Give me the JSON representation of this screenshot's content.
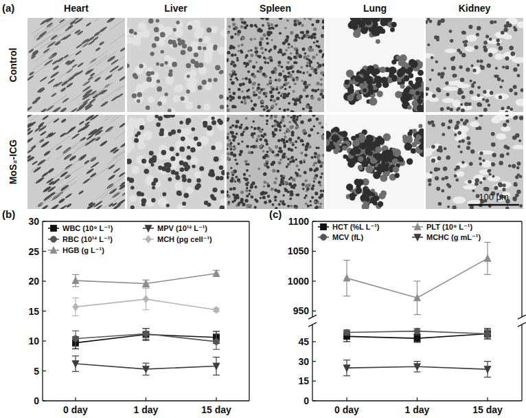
{
  "panel_labels": [
    "(a)",
    "(b)",
    "(c)"
  ],
  "panel_a": {
    "columns": [
      "Heart",
      "Liver",
      "Spleen",
      "Lung",
      "Kidney"
    ],
    "rows": [
      "Control",
      "MoS₂-ICG"
    ],
    "scale_bar": "100 μm"
  },
  "chart_data": [
    {
      "type": "line",
      "categories": [
        "0 day",
        "1 day",
        "15 day"
      ],
      "ylim": [
        0,
        30
      ],
      "yticks": [
        0,
        5,
        10,
        15,
        20,
        25,
        30
      ],
      "legend": "top",
      "series": [
        {
          "name": "WBC (10⁹ L⁻¹)",
          "color": "#111111",
          "marker": "square",
          "values": [
            9.7,
            11.1,
            10.6
          ],
          "errors": [
            1.0,
            1.0,
            1.0
          ]
        },
        {
          "name": "RBC (10¹² L⁻¹)",
          "color": "#555555",
          "marker": "circle",
          "values": [
            10.4,
            11.2,
            9.9
          ],
          "errors": [
            1.3,
            0.9,
            1.3
          ]
        },
        {
          "name": "HGB (g L⁻¹)",
          "color": "#8c8c8c",
          "marker": "triangle-up",
          "values": [
            20.1,
            19.6,
            21.3
          ],
          "errors": [
            1.0,
            0.6,
            0.5
          ]
        },
        {
          "name": "MPV (10¹² L⁻¹)",
          "color": "#3d3d3d",
          "marker": "triangle-down",
          "values": [
            6.2,
            5.3,
            5.8
          ],
          "errors": [
            1.3,
            1.0,
            1.5
          ]
        },
        {
          "name": "MCH (pg cell⁻¹)",
          "color": "#b5b5b5",
          "marker": "diamond",
          "values": [
            15.7,
            17.0,
            15.2
          ],
          "errors": [
            1.5,
            1.8,
            0.3
          ]
        }
      ]
    },
    {
      "type": "line",
      "categories": [
        "0 day",
        "1 day",
        "15 day"
      ],
      "ylim": [
        0,
        1100
      ],
      "ybreak": [
        58,
        940
      ],
      "yticks": [
        0,
        15,
        30,
        45,
        950,
        1000,
        1050,
        1100
      ],
      "legend": "top",
      "series": [
        {
          "name": "HCT (%L L⁻¹)",
          "color": "#111111",
          "marker": "square",
          "values": [
            49,
            47.5,
            51
          ],
          "errors": [
            4,
            3,
            4
          ]
        },
        {
          "name": "MCV (fL)",
          "color": "#555555",
          "marker": "circle",
          "values": [
            52,
            53,
            51
          ],
          "errors": [
            2,
            2,
            3
          ]
        },
        {
          "name": "PLT (10⁹ L⁻¹)",
          "color": "#8c8c8c",
          "marker": "triangle-up",
          "values": [
            1005,
            972,
            1038
          ],
          "errors": [
            30,
            28,
            27
          ]
        },
        {
          "name": "MCHC (g mL⁻¹)",
          "color": "#3d3d3d",
          "marker": "triangle-down",
          "values": [
            25,
            26,
            24
          ],
          "errors": [
            6,
            4,
            6
          ]
        }
      ]
    }
  ]
}
